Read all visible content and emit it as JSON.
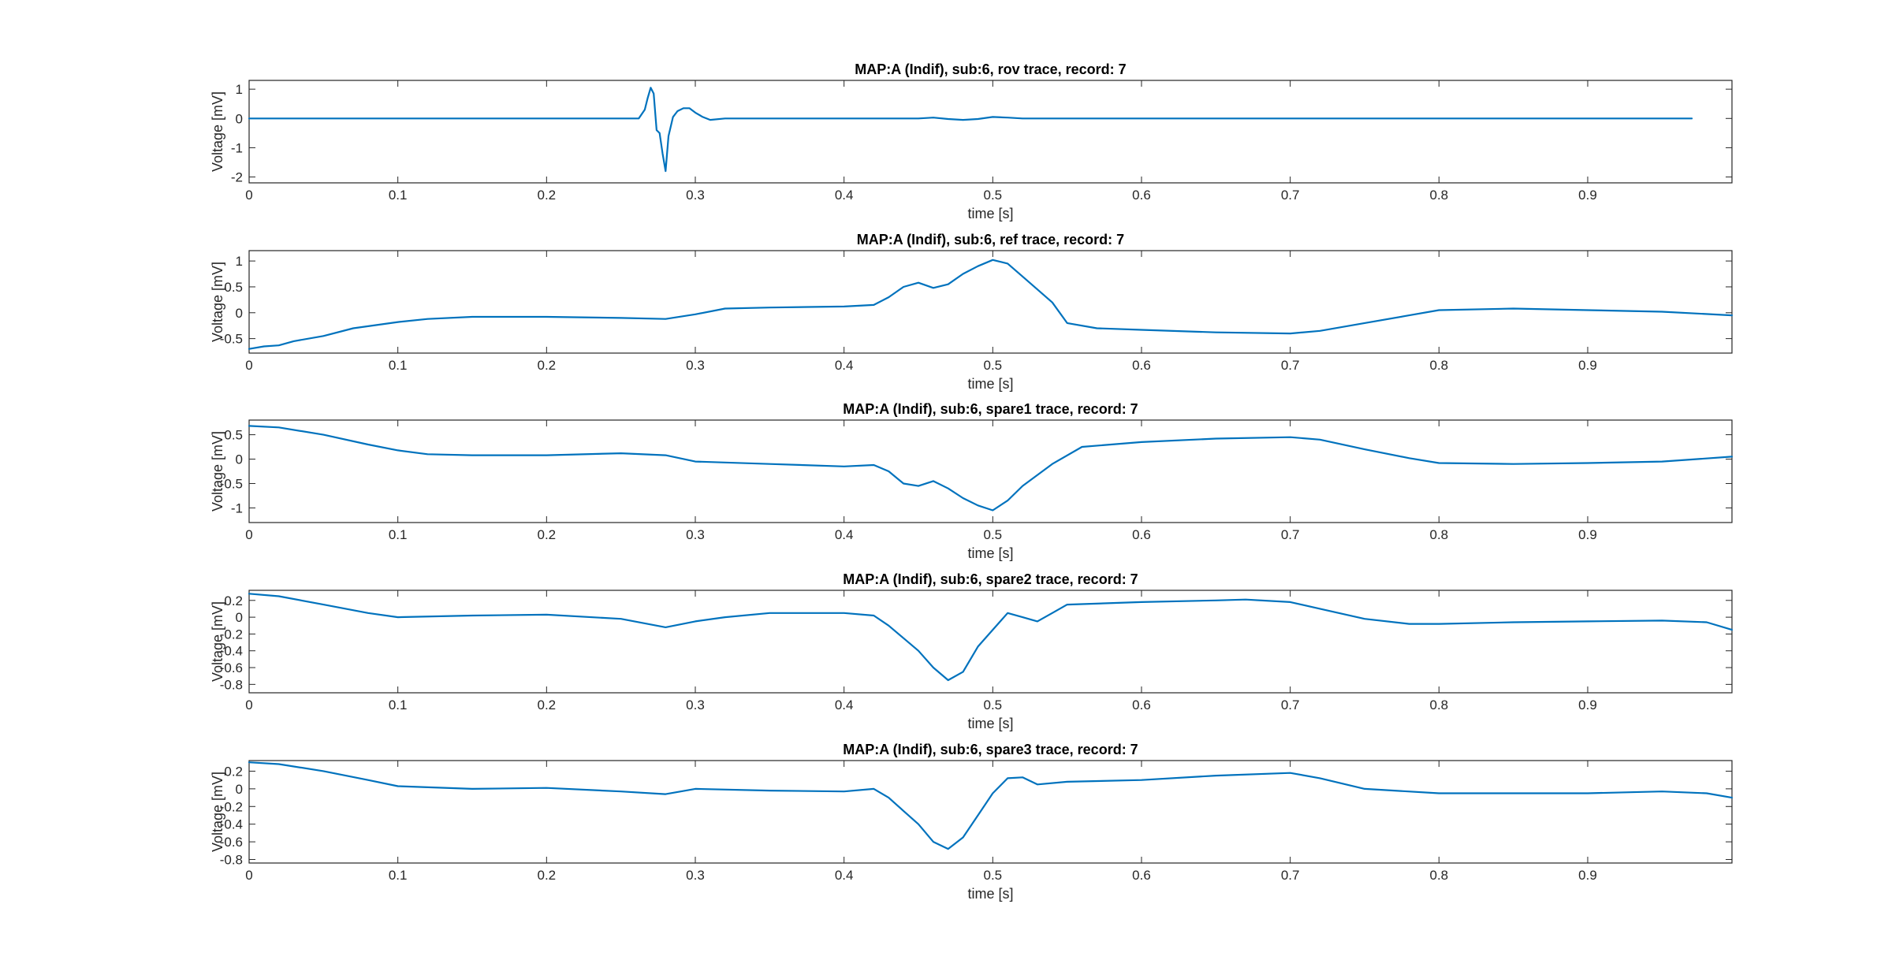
{
  "figure": {
    "background": "#ffffff",
    "line_color": "#0072BD",
    "axis_color": "#262626"
  },
  "chart_data": [
    {
      "type": "line",
      "title": "MAP:A (Indif), sub:6, rov trace, record: 7",
      "xlabel": "time [s]",
      "ylabel": "Voltage [mV]",
      "xlim": [
        0,
        0.997
      ],
      "ylim": [
        -2.2,
        1.3
      ],
      "xticks": [
        0,
        0.1,
        0.2,
        0.3,
        0.4,
        0.5,
        0.6,
        0.7,
        0.8,
        0.9
      ],
      "xtick_labels": [
        "0",
        "0.1",
        "0.2",
        "0.3",
        "0.4",
        "0.5",
        "0.6",
        "0.7",
        "0.8",
        "0.9"
      ],
      "yticks": [
        -2,
        -1,
        0,
        1
      ],
      "ytick_labels": [
        "-2",
        "-1",
        "0",
        "1"
      ],
      "series": [
        {
          "x": [
            0,
            0.05,
            0.1,
            0.15,
            0.2,
            0.25,
            0.262,
            0.266,
            0.268,
            0.27,
            0.272,
            0.274,
            0.276,
            0.278,
            0.28,
            0.282,
            0.285,
            0.288,
            0.292,
            0.296,
            0.3,
            0.305,
            0.31,
            0.32,
            0.35,
            0.4,
            0.45,
            0.46,
            0.47,
            0.48,
            0.49,
            0.5,
            0.51,
            0.52,
            0.55,
            0.6,
            0.7,
            0.8,
            0.9,
            0.95,
            0.97
          ],
          "values": [
            0,
            0,
            0,
            0,
            0,
            0,
            0,
            0.3,
            0.7,
            1.05,
            0.85,
            -0.4,
            -0.5,
            -1.2,
            -1.8,
            -0.6,
            0.05,
            0.25,
            0.35,
            0.35,
            0.2,
            0.05,
            -0.05,
            0,
            0,
            0,
            0,
            0.03,
            -0.02,
            -0.05,
            -0.02,
            0.05,
            0.03,
            0,
            0,
            0,
            0,
            0,
            0,
            0,
            0
          ]
        }
      ]
    },
    {
      "type": "line",
      "title": "MAP:A (Indif), sub:6, ref trace, record: 7",
      "xlabel": "time [s]",
      "ylabel": "Voltage [mV]",
      "xlim": [
        0,
        0.997
      ],
      "ylim": [
        -0.78,
        1.2
      ],
      "xticks": [
        0,
        0.1,
        0.2,
        0.3,
        0.4,
        0.5,
        0.6,
        0.7,
        0.8,
        0.9
      ],
      "xtick_labels": [
        "0",
        "0.1",
        "0.2",
        "0.3",
        "0.4",
        "0.5",
        "0.6",
        "0.7",
        "0.8",
        "0.9"
      ],
      "yticks": [
        -0.5,
        0,
        0.5,
        1
      ],
      "ytick_labels": [
        "-0.5",
        "0",
        "0.5",
        "1"
      ],
      "series": [
        {
          "x": [
            0,
            0.01,
            0.02,
            0.03,
            0.05,
            0.07,
            0.1,
            0.12,
            0.15,
            0.2,
            0.25,
            0.28,
            0.3,
            0.32,
            0.35,
            0.4,
            0.42,
            0.43,
            0.44,
            0.45,
            0.46,
            0.47,
            0.48,
            0.49,
            0.5,
            0.51,
            0.52,
            0.53,
            0.54,
            0.55,
            0.57,
            0.6,
            0.65,
            0.7,
            0.72,
            0.75,
            0.78,
            0.8,
            0.85,
            0.9,
            0.95,
            0.997
          ],
          "values": [
            -0.7,
            -0.65,
            -0.63,
            -0.55,
            -0.45,
            -0.3,
            -0.18,
            -0.12,
            -0.08,
            -0.08,
            -0.1,
            -0.12,
            -0.03,
            0.08,
            0.1,
            0.12,
            0.15,
            0.3,
            0.5,
            0.58,
            0.48,
            0.55,
            0.75,
            0.9,
            1.02,
            0.95,
            0.7,
            0.45,
            0.2,
            -0.2,
            -0.3,
            -0.33,
            -0.38,
            -0.4,
            -0.35,
            -0.2,
            -0.05,
            0.05,
            0.08,
            0.05,
            0.02,
            -0.05
          ]
        }
      ]
    },
    {
      "type": "line",
      "title": "MAP:A (Indif), sub:6, spare1 trace, record: 7",
      "xlabel": "time [s]",
      "ylabel": "Voltage [mV]",
      "xlim": [
        0,
        0.997
      ],
      "ylim": [
        -1.3,
        0.8
      ],
      "xticks": [
        0,
        0.1,
        0.2,
        0.3,
        0.4,
        0.5,
        0.6,
        0.7,
        0.8,
        0.9
      ],
      "xtick_labels": [
        "0",
        "0.1",
        "0.2",
        "0.3",
        "0.4",
        "0.5",
        "0.6",
        "0.7",
        "0.8",
        "0.9"
      ],
      "yticks": [
        -1,
        -0.5,
        0,
        0.5
      ],
      "ytick_labels": [
        "-1",
        "-0.5",
        "0",
        "0.5"
      ],
      "series": [
        {
          "x": [
            0,
            0.02,
            0.05,
            0.08,
            0.1,
            0.12,
            0.15,
            0.2,
            0.25,
            0.28,
            0.3,
            0.35,
            0.4,
            0.42,
            0.43,
            0.44,
            0.45,
            0.46,
            0.47,
            0.48,
            0.49,
            0.5,
            0.51,
            0.52,
            0.54,
            0.56,
            0.6,
            0.65,
            0.7,
            0.72,
            0.75,
            0.78,
            0.8,
            0.85,
            0.9,
            0.95,
            0.997
          ],
          "values": [
            0.68,
            0.65,
            0.5,
            0.3,
            0.18,
            0.1,
            0.08,
            0.08,
            0.12,
            0.08,
            -0.05,
            -0.1,
            -0.15,
            -0.12,
            -0.25,
            -0.5,
            -0.55,
            -0.45,
            -0.6,
            -0.8,
            -0.95,
            -1.05,
            -0.85,
            -0.55,
            -0.1,
            0.25,
            0.35,
            0.42,
            0.45,
            0.4,
            0.2,
            0.02,
            -0.08,
            -0.1,
            -0.08,
            -0.05,
            0.05
          ]
        }
      ]
    },
    {
      "type": "line",
      "title": "MAP:A (Indif), sub:6, spare2 trace, record: 7",
      "xlabel": "time [s]",
      "ylabel": "Voltage [mV]",
      "xlim": [
        0,
        0.997
      ],
      "ylim": [
        -0.9,
        0.32
      ],
      "xticks": [
        0,
        0.1,
        0.2,
        0.3,
        0.4,
        0.5,
        0.6,
        0.7,
        0.8,
        0.9
      ],
      "xtick_labels": [
        "0",
        "0.1",
        "0.2",
        "0.3",
        "0.4",
        "0.5",
        "0.6",
        "0.7",
        "0.8",
        "0.9"
      ],
      "yticks": [
        -0.8,
        -0.6,
        -0.4,
        -0.2,
        0,
        0.2
      ],
      "ytick_labels": [
        "-0.8",
        "-0.6",
        "-0.4",
        "-0.2",
        "0",
        "0.2"
      ],
      "series": [
        {
          "x": [
            0,
            0.02,
            0.05,
            0.08,
            0.1,
            0.15,
            0.2,
            0.25,
            0.28,
            0.3,
            0.32,
            0.35,
            0.4,
            0.42,
            0.43,
            0.44,
            0.45,
            0.46,
            0.47,
            0.48,
            0.49,
            0.5,
            0.51,
            0.52,
            0.53,
            0.54,
            0.55,
            0.6,
            0.65,
            0.67,
            0.7,
            0.72,
            0.75,
            0.78,
            0.8,
            0.85,
            0.9,
            0.95,
            0.98,
            0.997
          ],
          "values": [
            0.28,
            0.25,
            0.15,
            0.05,
            0,
            0.02,
            0.03,
            -0.02,
            -0.12,
            -0.05,
            0,
            0.05,
            0.05,
            0.02,
            -0.1,
            -0.25,
            -0.4,
            -0.6,
            -0.75,
            -0.65,
            -0.35,
            -0.15,
            0.05,
            0,
            -0.05,
            0.05,
            0.15,
            0.18,
            0.2,
            0.21,
            0.18,
            0.1,
            -0.02,
            -0.08,
            -0.08,
            -0.06,
            -0.05,
            -0.04,
            -0.06,
            -0.15
          ]
        }
      ]
    },
    {
      "type": "line",
      "title": "MAP:A (Indif), sub:6, spare3 trace, record: 7",
      "xlabel": "time [s]",
      "ylabel": "Voltage [mV]",
      "xlim": [
        0,
        0.997
      ],
      "ylim": [
        -0.84,
        0.32
      ],
      "xticks": [
        0,
        0.1,
        0.2,
        0.3,
        0.4,
        0.5,
        0.6,
        0.7,
        0.8,
        0.9
      ],
      "xtick_labels": [
        "0",
        "0.1",
        "0.2",
        "0.3",
        "0.4",
        "0.5",
        "0.6",
        "0.7",
        "0.8",
        "0.9"
      ],
      "yticks": [
        -0.8,
        -0.6,
        -0.4,
        -0.2,
        0,
        0.2
      ],
      "ytick_labels": [
        "-0.8",
        "-0.6",
        "-0.4",
        "-0.2",
        "0",
        "0.2"
      ],
      "series": [
        {
          "x": [
            0,
            0.02,
            0.05,
            0.08,
            0.1,
            0.15,
            0.2,
            0.25,
            0.28,
            0.3,
            0.35,
            0.4,
            0.42,
            0.43,
            0.44,
            0.45,
            0.46,
            0.47,
            0.48,
            0.49,
            0.5,
            0.51,
            0.52,
            0.53,
            0.55,
            0.6,
            0.65,
            0.7,
            0.72,
            0.75,
            0.8,
            0.85,
            0.9,
            0.95,
            0.98,
            0.997
          ],
          "values": [
            0.3,
            0.28,
            0.2,
            0.1,
            0.03,
            0,
            0.01,
            -0.03,
            -0.06,
            0,
            -0.02,
            -0.03,
            0,
            -0.1,
            -0.25,
            -0.4,
            -0.6,
            -0.68,
            -0.55,
            -0.3,
            -0.05,
            0.12,
            0.13,
            0.05,
            0.08,
            0.1,
            0.15,
            0.18,
            0.12,
            0,
            -0.05,
            -0.05,
            -0.05,
            -0.03,
            -0.05,
            -0.1
          ]
        }
      ]
    }
  ]
}
